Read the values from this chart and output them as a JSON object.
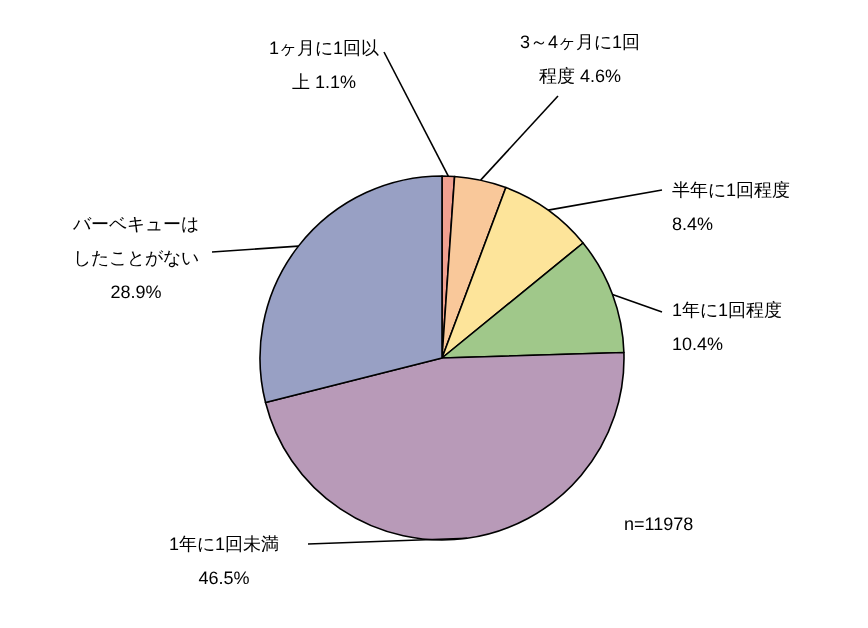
{
  "chart_data": {
    "type": "pie",
    "categories": [
      "1ヶ月に1回以上",
      "3～4ヶ月に1回程度",
      "半年に1回程度",
      "1年に1回程度",
      "1年に1回未満",
      "バーベキューはしたことがない"
    ],
    "values": [
      1.1,
      4.6,
      8.4,
      10.4,
      46.5,
      28.9
    ],
    "value_labels": [
      "1.1%",
      "4.6%",
      "8.4%",
      "10.4%",
      "46.5%",
      "28.9%"
    ],
    "colors": [
      "#f0a090",
      "#f9c89a",
      "#fde49a",
      "#a0c88a",
      "#b89ab8",
      "#98a0c4"
    ],
    "annotations": [
      "n=11978"
    ]
  }
}
